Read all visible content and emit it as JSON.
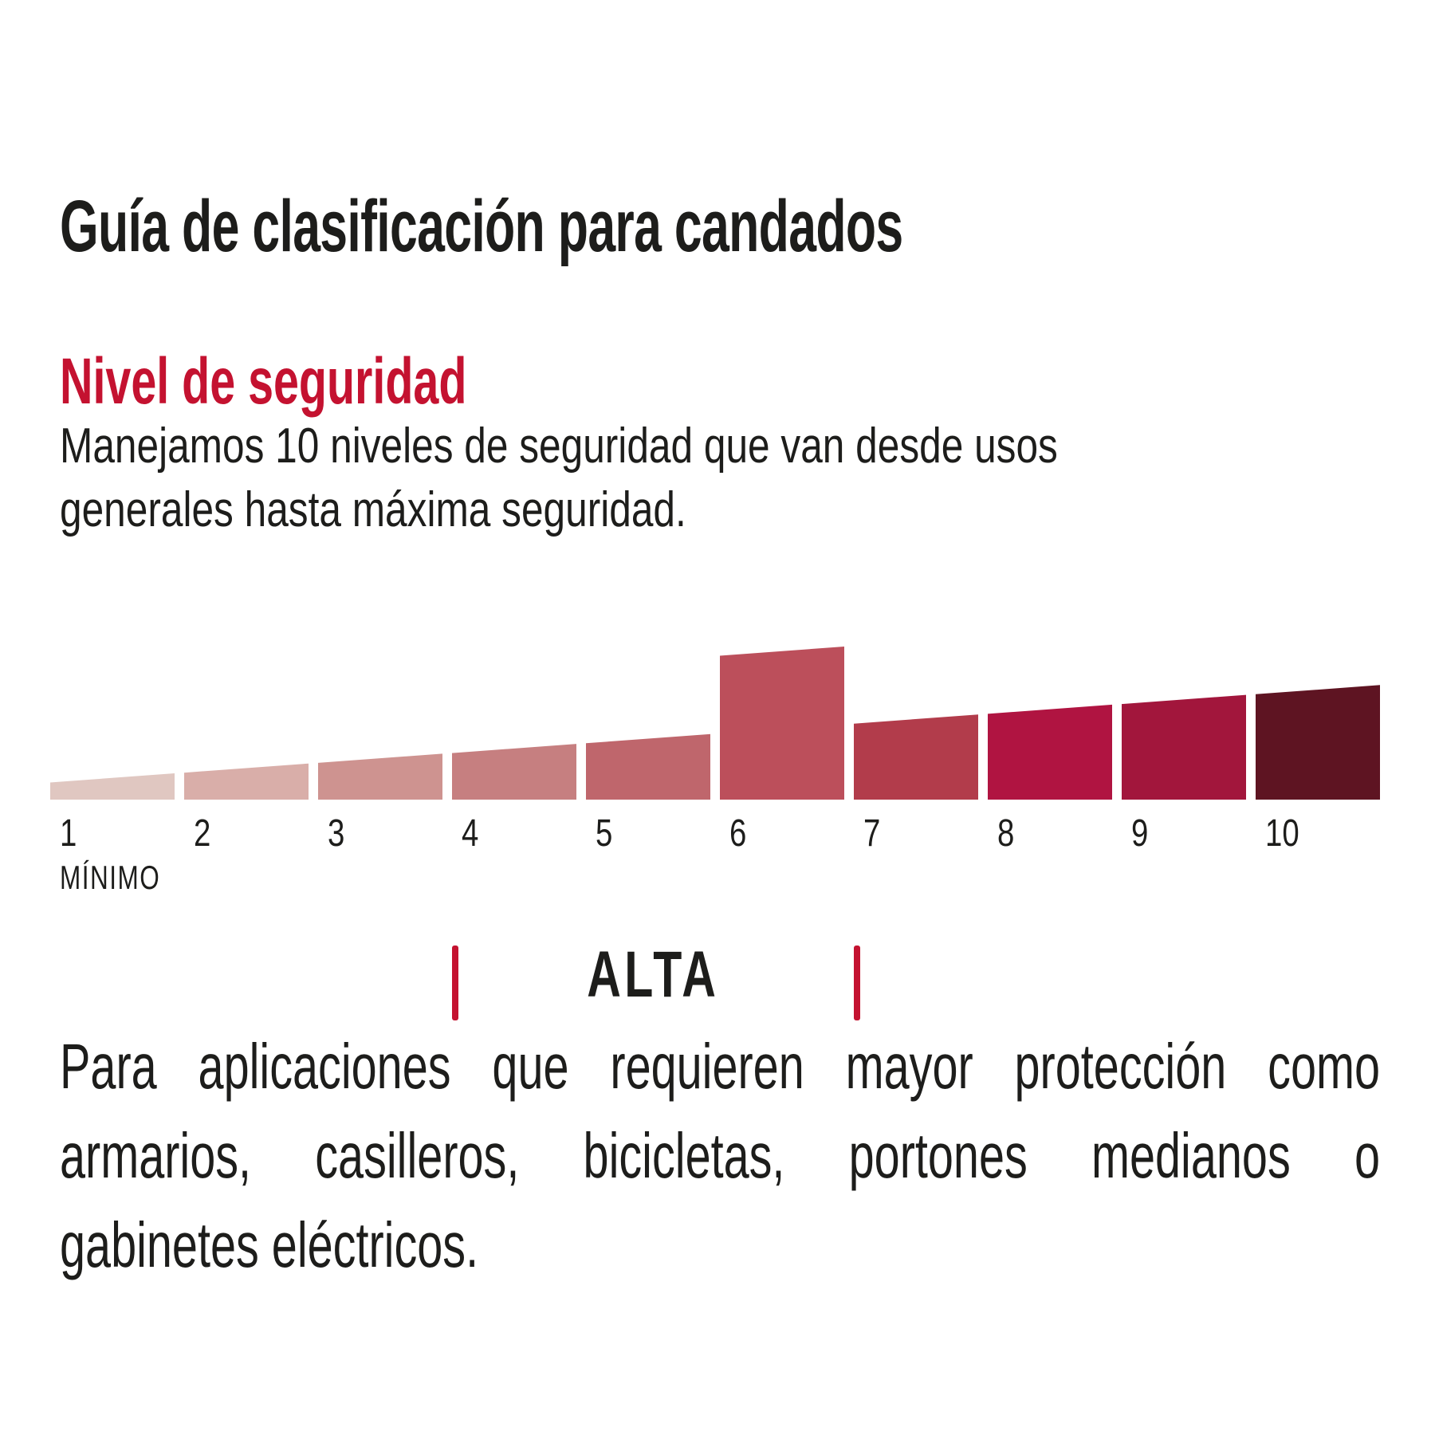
{
  "title": "Guía de clasificación para candados",
  "section": {
    "heading": "Nivel de seguridad",
    "intro_lines": [
      "Manejamos 10 niveles de seguridad que van desde usos",
      "generales hasta máxima seguridad."
    ]
  },
  "chart_data": {
    "type": "bar",
    "title": "Nivel de seguridad",
    "categories": [
      "1",
      "2",
      "3",
      "4",
      "5",
      "6",
      "7",
      "8",
      "9",
      "10"
    ],
    "values": [
      1,
      2,
      3,
      4,
      5,
      6,
      7,
      8,
      9,
      10
    ],
    "highlighted_level": 6,
    "bar_colors": [
      "#E0C7C1",
      "#D9AEA9",
      "#CE9390",
      "#C67F80",
      "#BF666C",
      "#BC4F5B",
      "#B23C4B",
      "#B01441",
      "#A2163C",
      "#5E1422"
    ],
    "min_label": "MÍNIMO",
    "range_label": "ALTA",
    "range_span_levels": [
      4,
      7
    ],
    "xlabel": "",
    "ylabel": "",
    "grid": false,
    "legend": false
  },
  "description_lines": [
    "Para aplicaciones que requieren mayor protección como",
    "armarios, casilleros, bicicletas, portones medianos o",
    "gabinetes eléctricos."
  ],
  "colors": {
    "accent_red": "#C41230",
    "text": "#1D1D1B",
    "background": "#FFFFFF"
  }
}
